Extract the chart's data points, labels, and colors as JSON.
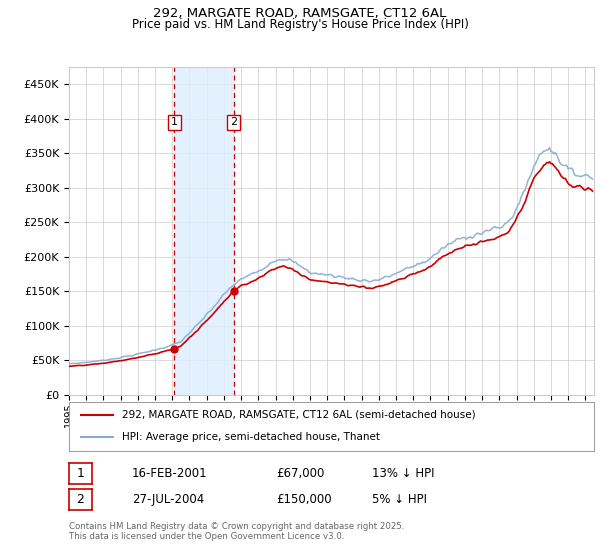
{
  "title_line1": "292, MARGATE ROAD, RAMSGATE, CT12 6AL",
  "title_line2": "Price paid vs. HM Land Registry's House Price Index (HPI)",
  "ylim": [
    0,
    475000
  ],
  "yticks": [
    0,
    50000,
    100000,
    150000,
    200000,
    250000,
    300000,
    350000,
    400000,
    450000
  ],
  "ytick_labels": [
    "£0",
    "£50K",
    "£100K",
    "£150K",
    "£200K",
    "£250K",
    "£300K",
    "£350K",
    "£400K",
    "£450K"
  ],
  "background_color": "#ffffff",
  "plot_bg_color": "#ffffff",
  "grid_color": "#cccccc",
  "sale1_date": 2001.12,
  "sale1_price": 67000,
  "sale1_label": "1",
  "sale2_date": 2004.57,
  "sale2_price": 150000,
  "sale2_label": "2",
  "shade_color": "#ddeeff",
  "vline_color": "#cc0000",
  "hpi_color": "#88aacc",
  "price_color": "#cc0000",
  "legend_label1": "292, MARGATE ROAD, RAMSGATE, CT12 6AL (semi-detached house)",
  "legend_label2": "HPI: Average price, semi-detached house, Thanet",
  "table_row1": [
    "1",
    "16-FEB-2001",
    "£67,000",
    "13% ↓ HPI"
  ],
  "table_row2": [
    "2",
    "27-JUL-2004",
    "£150,000",
    "5% ↓ HPI"
  ],
  "footer": "Contains HM Land Registry data © Crown copyright and database right 2025.\nThis data is licensed under the Open Government Licence v3.0.",
  "xmin": 1995.0,
  "xmax": 2025.5,
  "xtick_years": [
    1995,
    1996,
    1997,
    1998,
    1999,
    2000,
    2001,
    2002,
    2003,
    2004,
    2005,
    2006,
    2007,
    2008,
    2009,
    2010,
    2011,
    2012,
    2013,
    2014,
    2015,
    2016,
    2017,
    2018,
    2019,
    2020,
    2021,
    2022,
    2023,
    2024,
    2025
  ]
}
